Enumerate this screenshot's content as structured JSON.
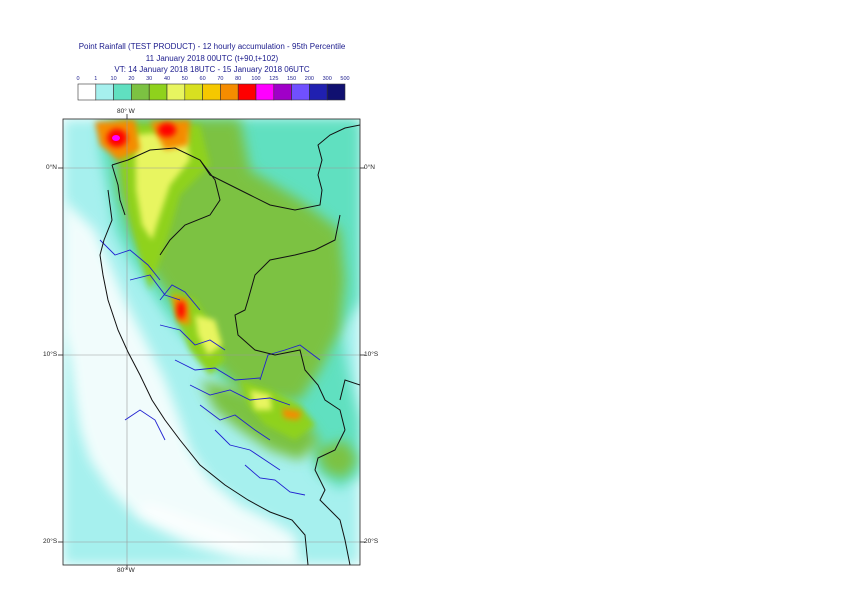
{
  "title": {
    "line1": "Point Rainfall (TEST PRODUCT) - 12 hourly accumulation - 95th Percentile",
    "line2": "11 January 2018 00UTC (t+90,t+102)",
    "line3": "VT: 14 January 2018 18UTC - 15 January 2018 06UTC"
  },
  "legend": {
    "thresholds": [
      "0",
      "1",
      "10",
      "20",
      "30",
      "40",
      "50",
      "60",
      "70",
      "80",
      "100",
      "125",
      "150",
      "200",
      "300",
      "500"
    ],
    "colors": [
      "#ffffff",
      "#a6f0ee",
      "#60e0c0",
      "#7cc242",
      "#8fd21c",
      "#e8f560",
      "#d8e020",
      "#f5c800",
      "#f58c00",
      "#ff0000",
      "#ff00ff",
      "#a000c8",
      "#7050ff",
      "#2020b0",
      "#101070"
    ]
  },
  "map": {
    "top_lon_label": "80° W",
    "bottom_lon_label": "80° W",
    "lat_labels": [
      {
        "left": "0°N",
        "right": "0°N"
      },
      {
        "left": "10°S",
        "right": "10°S"
      },
      {
        "left": "20°S",
        "right": "20°S"
      }
    ]
  }
}
